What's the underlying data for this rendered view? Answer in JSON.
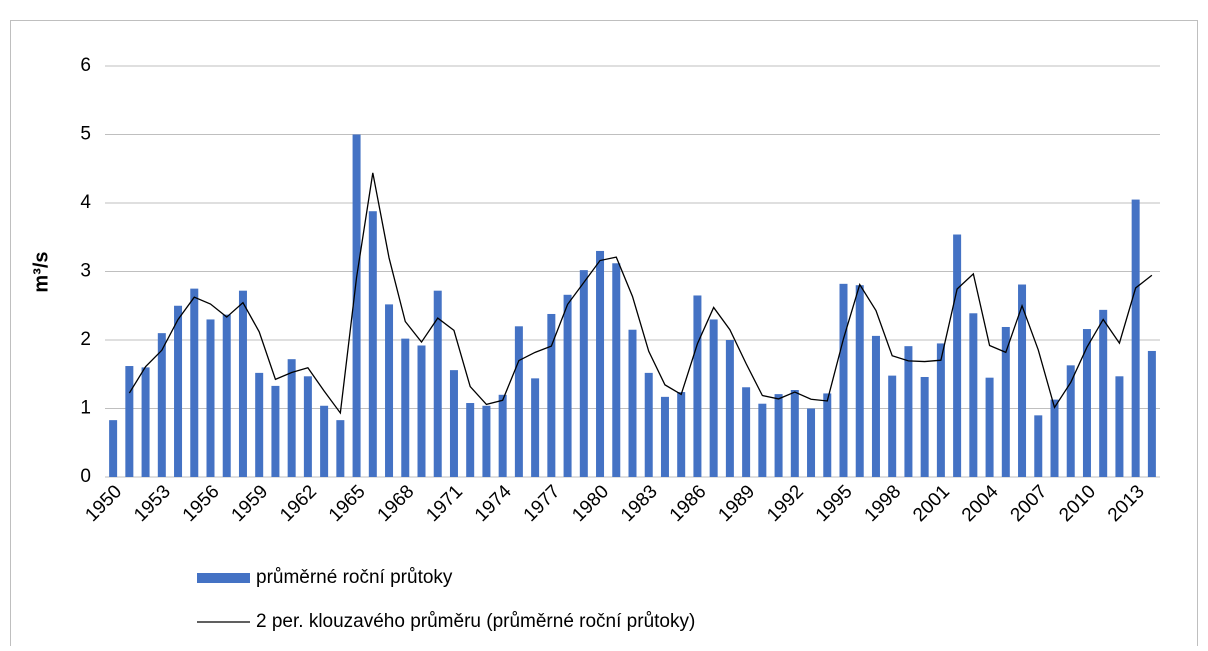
{
  "chart_data": {
    "type": "bar-line",
    "y_label": "m³/s",
    "categories": [
      "1950",
      null,
      null,
      "1953",
      null,
      null,
      "1956",
      null,
      null,
      "1959",
      null,
      null,
      "1962",
      null,
      null,
      "1965",
      null,
      null,
      "1968",
      null,
      null,
      "1971",
      null,
      null,
      "1974",
      null,
      null,
      "1977",
      null,
      null,
      "1980",
      null,
      null,
      "1983",
      null,
      null,
      "1986",
      null,
      null,
      "1989",
      null,
      null,
      "1992",
      null,
      null,
      "1995",
      null,
      null,
      "1998",
      null,
      null,
      "2001",
      null,
      null,
      "2004",
      null,
      null,
      "2007",
      null,
      null,
      "2010",
      null,
      null,
      "2013",
      null
    ],
    "series": [
      {
        "name": "průměrné roční průtoky",
        "type": "bar",
        "color": "#4472c4",
        "values": [
          0.83,
          1.62,
          1.6,
          2.1,
          2.5,
          2.75,
          2.3,
          2.37,
          2.72,
          1.52,
          1.33,
          1.72,
          1.47,
          1.04,
          0.83,
          5.0,
          3.88,
          2.52,
          2.02,
          1.92,
          2.72,
          1.56,
          1.08,
          1.04,
          1.2,
          2.2,
          1.44,
          2.38,
          2.66,
          3.02,
          3.3,
          3.12,
          2.15,
          1.52,
          1.17,
          1.24,
          2.65,
          2.3,
          2.0,
          1.31,
          1.07,
          1.21,
          1.27,
          1.0,
          1.22,
          2.82,
          2.8,
          2.06,
          1.48,
          1.91,
          1.46,
          1.95,
          3.54,
          2.39,
          1.45,
          2.19,
          2.81,
          0.9,
          1.13,
          1.63,
          2.16,
          2.44,
          1.47,
          4.05,
          1.84
        ]
      },
      {
        "name": "2 per. klouzavého průměru (průměrné roční průtoky)",
        "type": "line",
        "color": "#000000",
        "values": [
          null,
          1.225,
          1.61,
          1.85,
          2.3,
          2.625,
          2.525,
          2.335,
          2.545,
          2.12,
          1.425,
          1.525,
          1.595,
          1.255,
          0.935,
          2.915,
          4.44,
          3.2,
          2.27,
          1.97,
          2.32,
          2.14,
          1.32,
          1.06,
          1.12,
          1.7,
          1.82,
          1.91,
          2.52,
          2.84,
          3.16,
          3.21,
          2.635,
          1.835,
          1.345,
          1.205,
          1.945,
          2.475,
          2.15,
          1.655,
          1.19,
          1.14,
          1.24,
          1.135,
          1.11,
          2.02,
          2.81,
          2.43,
          1.77,
          1.695,
          1.685,
          1.705,
          2.745,
          2.965,
          1.92,
          1.82,
          2.5,
          1.855,
          1.015,
          1.38,
          1.895,
          2.3,
          1.955,
          2.76,
          2.945
        ]
      }
    ],
    "ylim": [
      0,
      6
    ],
    "yticks": [
      0,
      1,
      2,
      3,
      4,
      5,
      6
    ],
    "grid": true
  }
}
